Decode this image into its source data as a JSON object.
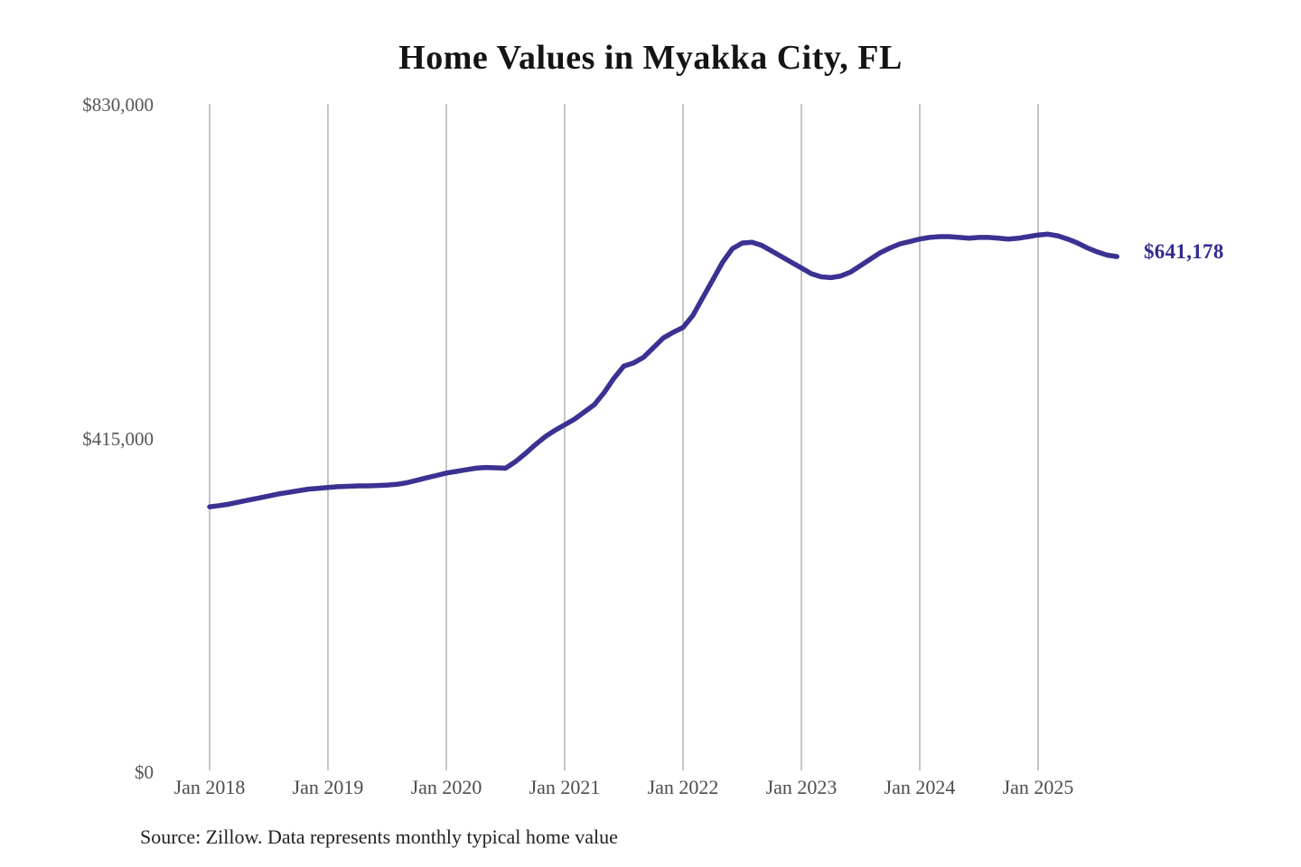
{
  "chart_data": {
    "type": "line",
    "title": "Home Values in Myakka City, FL",
    "source_note": "Source: Zillow. Data represents monthly typical home value",
    "x_tick_labels": [
      "Jan 2018",
      "Jan 2019",
      "Jan 2020",
      "Jan 2021",
      "Jan 2022",
      "Jan 2023",
      "Jan 2024",
      "Jan 2025"
    ],
    "y_ticks": [
      {
        "label": "$830,000",
        "value": 830000
      },
      {
        "label": "$415,000",
        "value": 415000
      },
      {
        "label": "$0",
        "value": 0
      }
    ],
    "ylim": [
      0,
      830000
    ],
    "x_start": "2018-01",
    "x_end": "2025-09",
    "x_frequency": "monthly",
    "grid": "vertical-only",
    "legend_position": "none",
    "end_label": "$641,178",
    "final_value": 641178,
    "line_color": "#3a3292",
    "end_label_color": "#312b8f",
    "grid_color": "#c6c6c6",
    "series": [
      {
        "name": "Typical home value",
        "values": [
          330000,
          331500,
          333500,
          336000,
          338500,
          341000,
          343500,
          346000,
          348000,
          350000,
          352000,
          353000,
          354000,
          355000,
          355500,
          356000,
          356000,
          356500,
          357000,
          358000,
          360000,
          363000,
          366000,
          369000,
          372000,
          374000,
          376000,
          378000,
          379000,
          378500,
          378000,
          386000,
          396000,
          407000,
          417000,
          425000,
          432000,
          439000,
          448000,
          457000,
          472000,
          490000,
          505000,
          509000,
          516000,
          528000,
          540000,
          547000,
          553000,
          568000,
          590000,
          612000,
          634000,
          651000,
          658000,
          659000,
          655000,
          648000,
          641000,
          634000,
          627000,
          620000,
          616000,
          615000,
          617000,
          622000,
          630000,
          638000,
          646000,
          652000,
          657000,
          660000,
          663000,
          665000,
          666000,
          666000,
          665000,
          664000,
          665000,
          665000,
          664000,
          663000,
          664000,
          666000,
          668000,
          669000,
          667000,
          663000,
          658000,
          652000,
          647000,
          643000,
          641178
        ]
      }
    ]
  }
}
